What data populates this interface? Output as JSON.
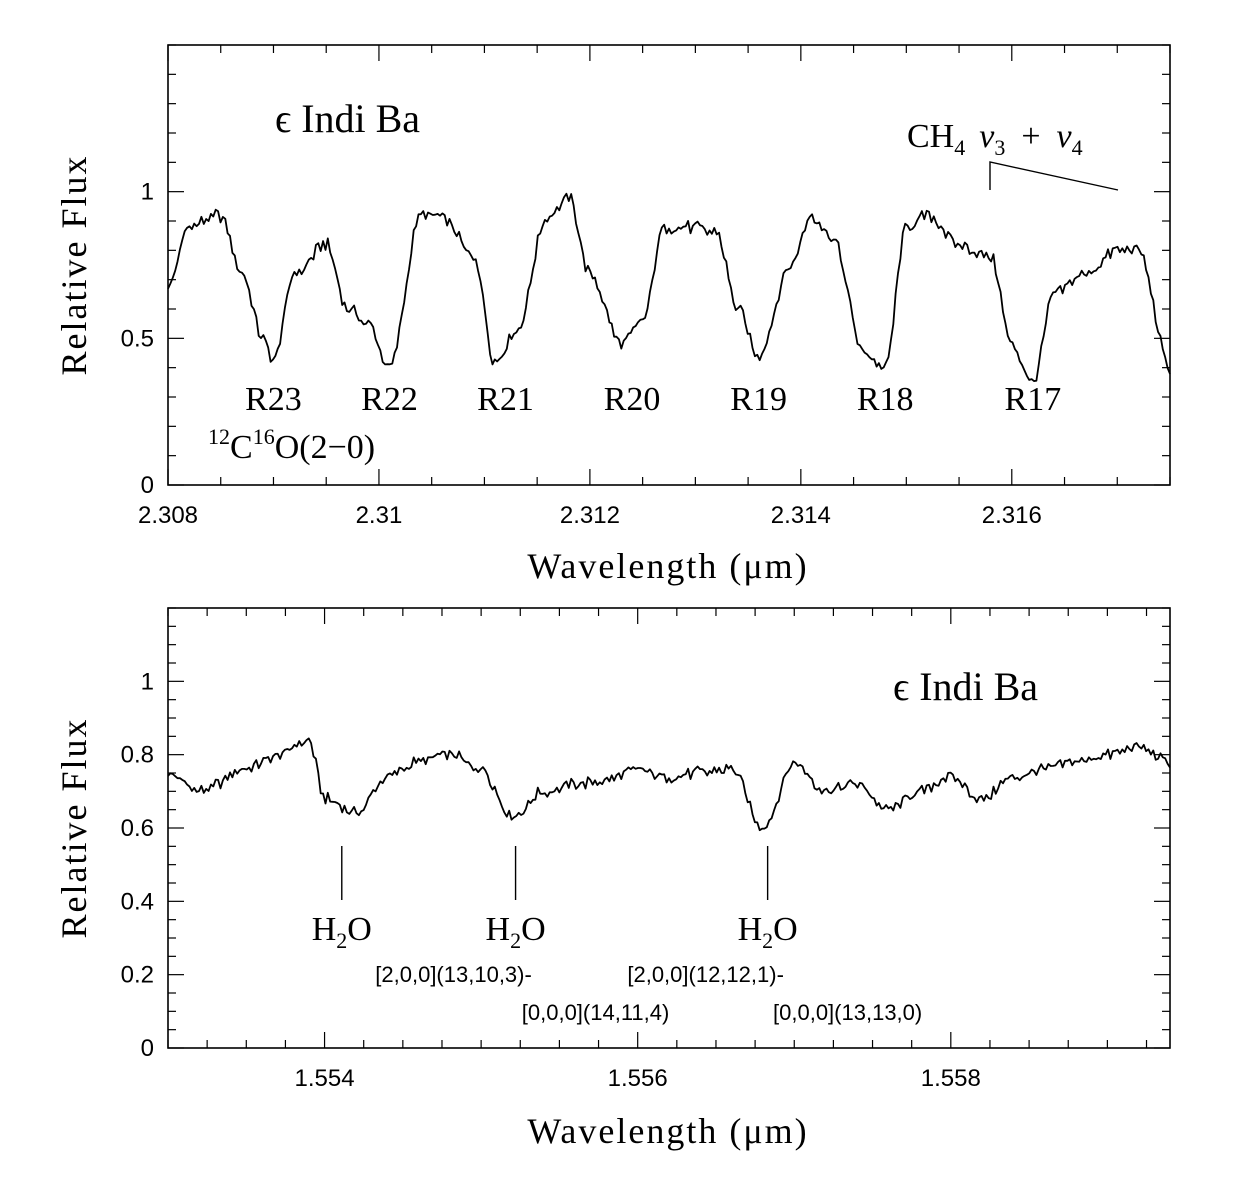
{
  "chart_data": [
    {
      "type": "line",
      "title": "ϵ Indi Ba",
      "xlabel": "Wavelength (μm)",
      "ylabel": "Relative Flux",
      "xlim": [
        2.308,
        2.3175
      ],
      "ylim": [
        0,
        1.5
      ],
      "x_ticks": [
        2.308,
        2.31,
        2.312,
        2.314,
        2.316
      ],
      "x_tick_labels": [
        "2.308",
        "2.31",
        "2.312",
        "2.314",
        "2.316"
      ],
      "y_ticks": [
        0,
        0.5,
        1
      ],
      "y_tick_labels": [
        "0",
        "0.5",
        "1"
      ],
      "grid": false,
      "series": [
        {
          "x": [
            2.308,
            2.3082,
            2.3085,
            2.3087,
            2.3089,
            2.309,
            2.3092,
            2.3095,
            2.3097,
            2.3099,
            2.3101,
            2.3104,
            2.3106,
            2.3109,
            2.3111,
            2.3113,
            2.3116,
            2.3118,
            2.312,
            2.3123,
            2.3125,
            2.3127,
            2.3129,
            2.3132,
            2.3134,
            2.3136,
            2.3139,
            2.3141,
            2.3143,
            2.3146,
            2.3148,
            2.315,
            2.3152,
            2.3155,
            2.3158,
            2.316,
            2.3162,
            2.3164,
            2.3167,
            2.317,
            2.3172,
            2.3175
          ],
          "y": [
            0.68,
            0.88,
            0.92,
            0.72,
            0.5,
            0.43,
            0.72,
            0.82,
            0.6,
            0.55,
            0.4,
            0.92,
            0.91,
            0.78,
            0.42,
            0.52,
            0.92,
            0.98,
            0.72,
            0.48,
            0.56,
            0.88,
            0.88,
            0.86,
            0.6,
            0.44,
            0.75,
            0.92,
            0.84,
            0.45,
            0.4,
            0.88,
            0.92,
            0.82,
            0.78,
            0.48,
            0.35,
            0.65,
            0.72,
            0.8,
            0.8,
            0.4
          ]
        }
      ],
      "annotations": {
        "co_lines": [
          {
            "label": "R23",
            "x": 2.309
          },
          {
            "label": "R22",
            "x": 2.3101
          },
          {
            "label": "R21",
            "x": 2.3112
          },
          {
            "label": "R20",
            "x": 2.3124
          },
          {
            "label": "R19",
            "x": 2.3136
          },
          {
            "label": "R18",
            "x": 2.3148
          },
          {
            "label": "R17",
            "x": 2.3162
          }
        ],
        "co_band": {
          "sup1": "12",
          "c": "C",
          "sup2": "16",
          "rest": "O(2−0)"
        },
        "ch4_band": {
          "prefix": "CH",
          "sub4": "4",
          "nu": "ν",
          "sub3": "3",
          "plus": "+",
          "nu2": "ν",
          "sub4b": "4"
        }
      }
    },
    {
      "type": "line",
      "title": "ϵ Indi Ba",
      "xlabel": "Wavelength (μm)",
      "ylabel": "Relative Flux",
      "xlim": [
        1.553,
        1.5594
      ],
      "ylim": [
        0,
        1.2
      ],
      "x_ticks": [
        1.554,
        1.556,
        1.558
      ],
      "x_tick_labels": [
        "1.554",
        "1.556",
        "1.558"
      ],
      "y_ticks": [
        0,
        0.2,
        0.4,
        0.6,
        0.8,
        1
      ],
      "y_tick_labels": [
        "0",
        "0.2",
        "0.4",
        "0.6",
        "0.8",
        "1"
      ],
      "grid": false,
      "series": [
        {
          "x": [
            1.553,
            1.5532,
            1.5535,
            1.5537,
            1.5539,
            1.554,
            1.5542,
            1.5544,
            1.5546,
            1.5548,
            1.555,
            1.5552,
            1.5554,
            1.5556,
            1.5558,
            1.556,
            1.5562,
            1.5564,
            1.5566,
            1.5568,
            1.557,
            1.5572,
            1.5574,
            1.5576,
            1.5578,
            1.558,
            1.5582,
            1.5584,
            1.5586,
            1.5588,
            1.559,
            1.5592,
            1.5594
          ],
          "y": [
            0.75,
            0.7,
            0.76,
            0.8,
            0.84,
            0.68,
            0.64,
            0.74,
            0.78,
            0.8,
            0.76,
            0.63,
            0.7,
            0.72,
            0.73,
            0.76,
            0.74,
            0.75,
            0.76,
            0.6,
            0.78,
            0.7,
            0.72,
            0.65,
            0.7,
            0.74,
            0.68,
            0.74,
            0.76,
            0.78,
            0.8,
            0.82,
            0.78
          ]
        }
      ],
      "annotations": {
        "h2o_lines": [
          {
            "x": 1.55411,
            "label": "H",
            "sub": "2",
            "rest": "O",
            "lines": []
          },
          {
            "x": 1.55522,
            "label": "H",
            "sub": "2",
            "rest": "O",
            "lines": [
              "[2,0,0](13,10,3)-",
              "[0,0,0](14,11,4)"
            ]
          },
          {
            "x": 1.55683,
            "label": "H",
            "sub": "2",
            "rest": "O",
            "lines": [
              "[2,0,0](12,12,1)-",
              "[0,0,0](13,13,0)"
            ]
          }
        ]
      }
    }
  ]
}
